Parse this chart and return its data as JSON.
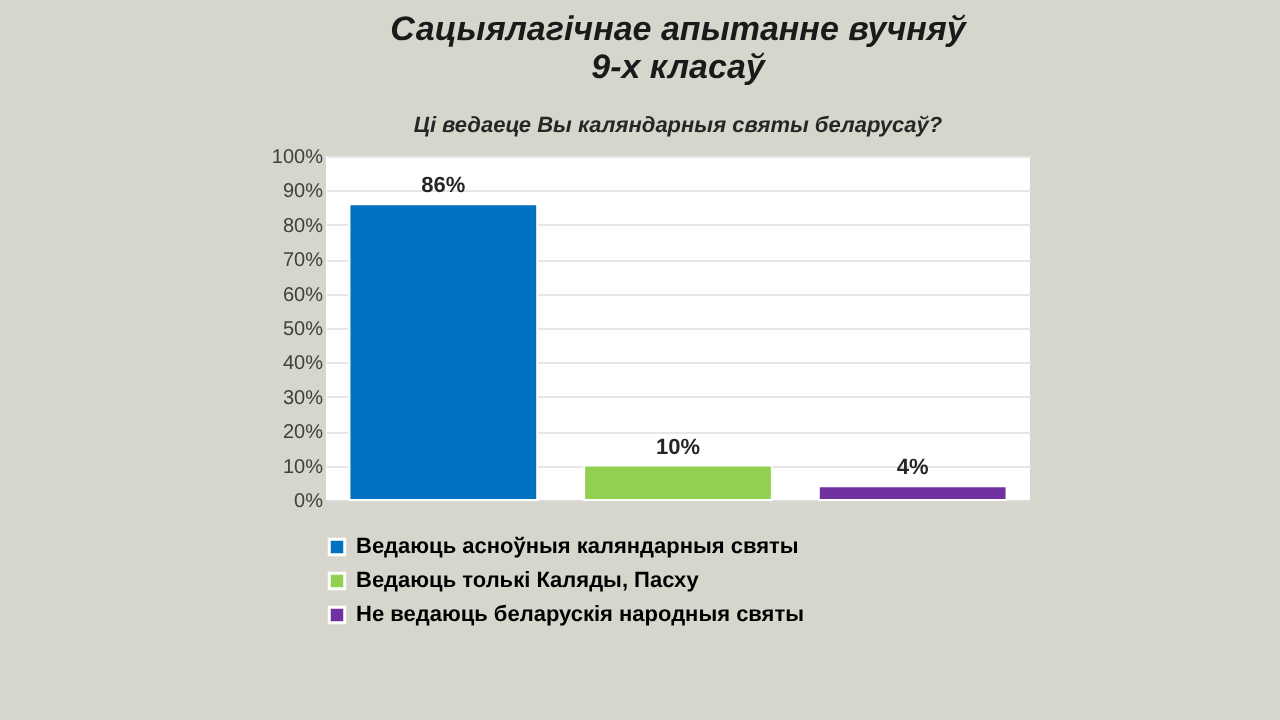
{
  "chart_data": {
    "type": "bar",
    "title": "Сацыялагічнае апытанне вучняў 9-х класаў",
    "subtitle": "Ці ведаеце Вы каляндарныя святы беларусаў?",
    "categories": [
      null,
      null,
      null
    ],
    "series": [
      {
        "name": "Ведаюць асноўныя каляндарныя святы",
        "color": "#0070c0",
        "values": [
          86,
          null,
          null
        ],
        "value_labels": [
          "86%",
          null,
          null
        ]
      },
      {
        "name": "Ведаюць толькі Каляды, Пасху",
        "color": "#92d050",
        "values": [
          null,
          10,
          null
        ],
        "value_labels": [
          null,
          "10%",
          null
        ]
      },
      {
        "name": "Не ведаюць беларускія народныя святы",
        "color": "#7030a0",
        "values": [
          null,
          null,
          4
        ],
        "value_labels": [
          null,
          null,
          "4%"
        ]
      }
    ],
    "ylim": [
      0,
      100
    ],
    "yticks": [
      {
        "value": 0,
        "label": "0%"
      },
      {
        "value": 10,
        "label": "10%"
      },
      {
        "value": 20,
        "label": "20%"
      },
      {
        "value": 30,
        "label": "30%"
      },
      {
        "value": 40,
        "label": "40%"
      },
      {
        "value": 50,
        "label": "50%"
      },
      {
        "value": 60,
        "label": "60%"
      },
      {
        "value": 70,
        "label": "70%"
      },
      {
        "value": 80,
        "label": "80%"
      },
      {
        "value": 90,
        "label": "90%"
      },
      {
        "value": 100,
        "label": "100%"
      }
    ],
    "grid": "y",
    "legend": "bottom",
    "tick_labels": "y"
  }
}
